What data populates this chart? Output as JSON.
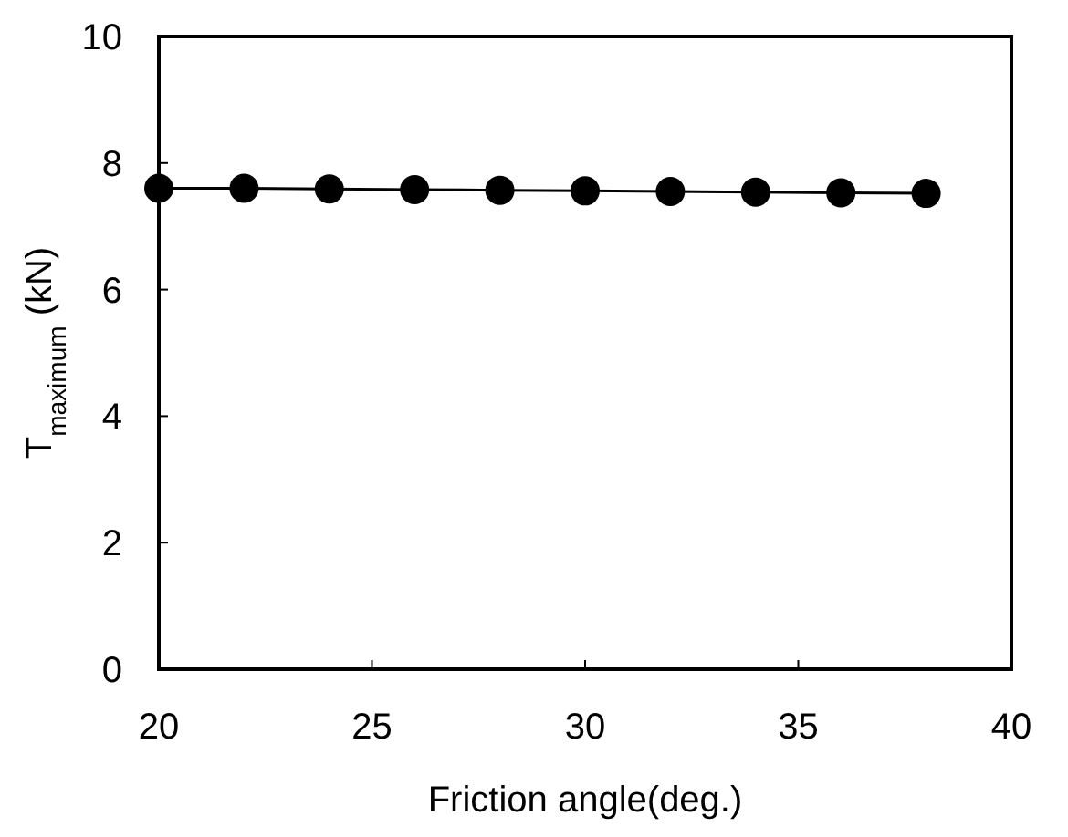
{
  "chart_data": {
    "type": "line",
    "xlabel": "Friction angle(deg.)",
    "ylabel": "T$_{maximum}$ (kN)",
    "x": [
      20,
      22,
      24,
      26,
      28,
      30,
      32,
      34,
      36,
      38
    ],
    "series": [
      {
        "color": "#000000",
        "values": [
          7.6,
          7.6,
          7.59,
          7.58,
          7.57,
          7.56,
          7.55,
          7.54,
          7.53,
          7.52
        ]
      }
    ],
    "xlim": [
      20,
      40
    ],
    "xticks": [
      20,
      25,
      30,
      35,
      40
    ],
    "ylim": [
      0,
      10
    ],
    "yticks": [
      0,
      2,
      4,
      6,
      8,
      10
    ],
    "marker": "circle",
    "line_style": "solid",
    "grid": false
  }
}
